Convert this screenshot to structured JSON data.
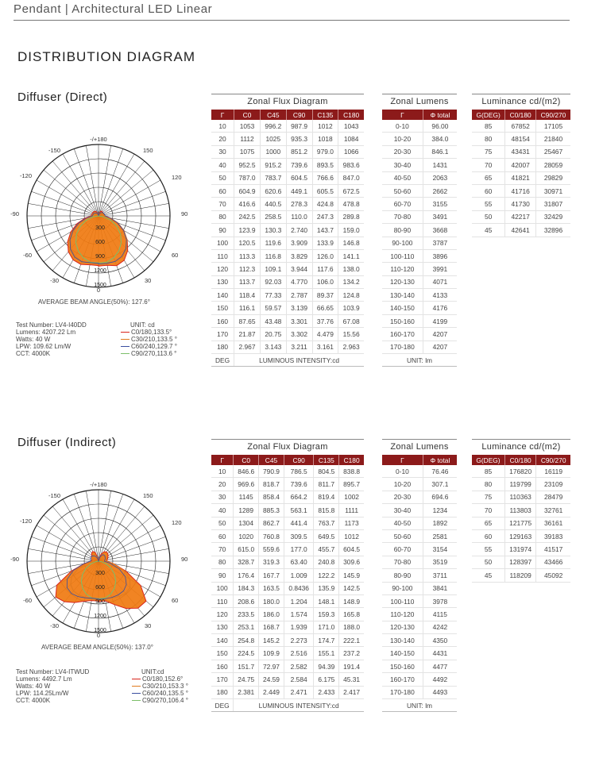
{
  "header": {
    "title": "Pendant | Architectural LED Linear"
  },
  "section_title": "DISTRIBUTION DIAGRAM",
  "polar_labels": {
    "angles": [
      "-/+180",
      "-150",
      "150",
      "-120",
      "120",
      "-90",
      "90",
      "-60",
      "60",
      "-30",
      "30",
      "0"
    ]
  },
  "panels": [
    {
      "title": "Diffuser (Direct)",
      "rings": [
        "300",
        "600",
        "900",
        "1200",
        "1500"
      ],
      "beam_angle": "AVERAGE BEAM ANGLE(50%): 127.6°",
      "info": [
        "Test Number: LV4-I40DD",
        "Lumens: 4207.22 Lm",
        "Watts: 40 W",
        "LPW: 109.62 Lm/W",
        "CCT: 4000K"
      ],
      "legend_title": "UNIT: cd",
      "legend": [
        {
          "label": "C0/180,133.5°",
          "color": "#d9241c"
        },
        {
          "label": "C30/210,133.5 °",
          "color": "#e07b1f"
        },
        {
          "label": "C60/240,129.7 °",
          "color": "#3a4ea0"
        },
        {
          "label": "C90/270,113.6 °",
          "color": "#7cbf6a"
        }
      ],
      "zonal_flux": {
        "title": "Zonal Flux Diagram",
        "headers": [
          "Γ",
          "C0",
          "C45",
          "C90",
          "C135",
          "C180"
        ],
        "rows": [
          [
            "10",
            "1053",
            "996.2",
            "987.9",
            "1012",
            "1043"
          ],
          [
            "20",
            "1112",
            "1025",
            "935.3",
            "1018",
            "1084"
          ],
          [
            "30",
            "1075",
            "1000",
            "851.2",
            "979.0",
            "1066"
          ],
          [
            "40",
            "952.5",
            "915.2",
            "739.6",
            "893.5",
            "983.6"
          ],
          [
            "50",
            "787.0",
            "783.7",
            "604.5",
            "766.6",
            "847.0"
          ],
          [
            "60",
            "604.9",
            "620.6",
            "449.1",
            "605.5",
            "672.5"
          ],
          [
            "70",
            "416.6",
            "440.5",
            "278.3",
            "424.8",
            "478.8"
          ],
          [
            "80",
            "242.5",
            "258.5",
            "110.0",
            "247.3",
            "289.8"
          ],
          [
            "90",
            "123.9",
            "130.3",
            "2.740",
            "143.7",
            "159.0"
          ],
          [
            "100",
            "120.5",
            "119.6",
            "3.909",
            "133.9",
            "146.8"
          ],
          [
            "110",
            "113.3",
            "116.8",
            "3.829",
            "126.0",
            "141.1"
          ],
          [
            "120",
            "112.3",
            "109.1",
            "3.944",
            "117.6",
            "138.0"
          ],
          [
            "130",
            "113.7",
            "92.03",
            "4.770",
            "106.0",
            "134.2"
          ],
          [
            "140",
            "118.4",
            "77.33",
            "2.787",
            "89.37",
            "124.8"
          ],
          [
            "150",
            "116.1",
            "59.57",
            "3.139",
            "66.65",
            "103.9"
          ],
          [
            "160",
            "87.65",
            "43.48",
            "3.301",
            "37.76",
            "67.08"
          ],
          [
            "170",
            "21.87",
            "20.75",
            "3.302",
            "4.479",
            "15.56"
          ],
          [
            "180",
            "2.967",
            "3.143",
            "3.211",
            "3.161",
            "2.963"
          ]
        ],
        "footer_left": "DEG",
        "footer_right": "LUMINOUS INTENSITY:cd"
      },
      "zonal_lumens": {
        "title": "Zonal Lumens",
        "headers": [
          "Γ",
          "Φ total"
        ],
        "rows": [
          [
            "0-10",
            "96.00"
          ],
          [
            "10-20",
            "384.0"
          ],
          [
            "20-30",
            "846.1"
          ],
          [
            "30-40",
            "1431"
          ],
          [
            "40-50",
            "2063"
          ],
          [
            "50-60",
            "2662"
          ],
          [
            "60-70",
            "3155"
          ],
          [
            "70-80",
            "3491"
          ],
          [
            "80-90",
            "3668"
          ],
          [
            "90-100",
            "3787"
          ],
          [
            "100-110",
            "3896"
          ],
          [
            "110-120",
            "3991"
          ],
          [
            "120-130",
            "4071"
          ],
          [
            "130-140",
            "4133"
          ],
          [
            "140-150",
            "4176"
          ],
          [
            "150-160",
            "4199"
          ],
          [
            "160-170",
            "4207"
          ],
          [
            "170-180",
            "4207"
          ]
        ],
        "footer": "UNIT: lm"
      },
      "luminance": {
        "title": "Luminance cd/(m2)",
        "headers": [
          "G(DEG)",
          "C0/180",
          "C90/270"
        ],
        "rows": [
          [
            "85",
            "67852",
            "17105"
          ],
          [
            "80",
            "48154",
            "21840"
          ],
          [
            "75",
            "43431",
            "25467"
          ],
          [
            "70",
            "42007",
            "28059"
          ],
          [
            "65",
            "41821",
            "29829"
          ],
          [
            "60",
            "41716",
            "30971"
          ],
          [
            "55",
            "41730",
            "31807"
          ],
          [
            "50",
            "42217",
            "32429"
          ],
          [
            "45",
            "42641",
            "32896"
          ]
        ]
      }
    },
    {
      "title": "Diffuser (Indirect)",
      "rings": [
        "300",
        "600",
        "900",
        "1200",
        "1500"
      ],
      "beam_angle": "AVERAGE BEAM ANGLE(50%): 137.0°",
      "info": [
        "Test Number: LV4-ITWUD",
        "Lumens: 4492.7 Lm",
        "Watts: 40 W",
        "LPW: 114.25Lm/W",
        "CCT: 4000K"
      ],
      "legend_title": "UNIT:cd",
      "legend": [
        {
          "label": "C0/180,152.6°",
          "color": "#d9241c"
        },
        {
          "label": "C30/210,153.3 °",
          "color": "#e07b1f"
        },
        {
          "label": "C60/240,135.5 °",
          "color": "#3a4ea0"
        },
        {
          "label": "C90/270,106.4 °",
          "color": "#7cbf6a"
        }
      ],
      "zonal_flux": {
        "title": "Zonal Flux Diagram",
        "headers": [
          "Γ",
          "C0",
          "C45",
          "C90",
          "C135",
          "C180"
        ],
        "rows": [
          [
            "10",
            "846.6",
            "790.9",
            "786.5",
            "804.5",
            "838.8"
          ],
          [
            "20",
            "969.6",
            "818.7",
            "739.6",
            "811.7",
            "895.7"
          ],
          [
            "30",
            "1145",
            "858.4",
            "664.2",
            "819.4",
            "1002"
          ],
          [
            "40",
            "1289",
            "885.3",
            "563.1",
            "815.8",
            "1111"
          ],
          [
            "50",
            "1304",
            "862.7",
            "441.4",
            "763.7",
            "1173"
          ],
          [
            "60",
            "1020",
            "760.8",
            "309.5",
            "649.5",
            "1012"
          ],
          [
            "70",
            "615.0",
            "559.6",
            "177.0",
            "455.7",
            "604.5"
          ],
          [
            "80",
            "328.7",
            "319.3",
            "63.40",
            "240.8",
            "309.6"
          ],
          [
            "90",
            "176.4",
            "167.7",
            "1.009",
            "122.2",
            "145.9"
          ],
          [
            "100",
            "184.3",
            "163.5",
            "0.8436",
            "135.9",
            "142.5"
          ],
          [
            "110",
            "208.6",
            "180.0",
            "1.204",
            "148.1",
            "148.9"
          ],
          [
            "120",
            "233.5",
            "186.0",
            "1.574",
            "159.3",
            "165.8"
          ],
          [
            "130",
            "253.1",
            "168.7",
            "1.939",
            "171.0",
            "188.0"
          ],
          [
            "140",
            "254.8",
            "145.2",
            "2.273",
            "174.7",
            "222.1"
          ],
          [
            "150",
            "224.5",
            "109.9",
            "2.516",
            "155.1",
            "237.2"
          ],
          [
            "160",
            "151.7",
            "72.97",
            "2.582",
            "94.39",
            "191.4"
          ],
          [
            "170",
            "24.75",
            "24.59",
            "2.584",
            "6.175",
            "45.31"
          ],
          [
            "180",
            "2.381",
            "2.449",
            "2.471",
            "2.433",
            "2.417"
          ]
        ],
        "footer_left": "DEG",
        "footer_right": "LUMINOUS INTENSITY:cd"
      },
      "zonal_lumens": {
        "title": "Zonal Lumens",
        "headers": [
          "Γ",
          "Φ total"
        ],
        "rows": [
          [
            "0-10",
            "76.46"
          ],
          [
            "10-20",
            "307.1"
          ],
          [
            "20-30",
            "694.6"
          ],
          [
            "30-40",
            "1234"
          ],
          [
            "40-50",
            "1892"
          ],
          [
            "50-60",
            "2581"
          ],
          [
            "60-70",
            "3154"
          ],
          [
            "70-80",
            "3519"
          ],
          [
            "80-90",
            "3711"
          ],
          [
            "90-100",
            "3841"
          ],
          [
            "100-110",
            "3978"
          ],
          [
            "110-120",
            "4115"
          ],
          [
            "120-130",
            "4242"
          ],
          [
            "130-140",
            "4350"
          ],
          [
            "140-150",
            "4431"
          ],
          [
            "150-160",
            "4477"
          ],
          [
            "160-170",
            "4492"
          ],
          [
            "170-180",
            "4493"
          ]
        ],
        "footer": "UNIT: lm"
      },
      "luminance": {
        "title": "Luminance cd/(m2)",
        "headers": [
          "G(DEG)",
          "C0/180",
          "C90/270"
        ],
        "rows": [
          [
            "85",
            "176820",
            "16119"
          ],
          [
            "80",
            "119799",
            "23109"
          ],
          [
            "75",
            "110363",
            "28479"
          ],
          [
            "70",
            "113803",
            "32761"
          ],
          [
            "65",
            "121775",
            "36161"
          ],
          [
            "60",
            "129163",
            "39183"
          ],
          [
            "55",
            "131974",
            "41517"
          ],
          [
            "50",
            "128397",
            "43466"
          ],
          [
            "45",
            "118209",
            "45092"
          ]
        ]
      }
    }
  ]
}
